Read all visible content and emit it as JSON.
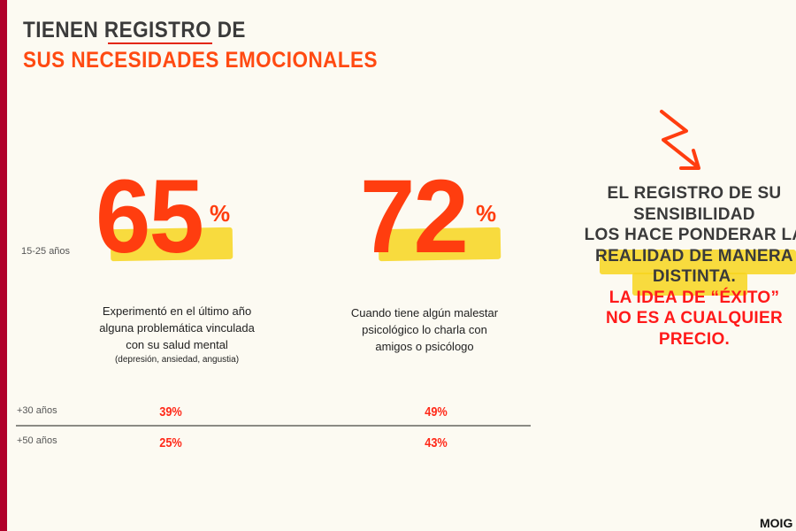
{
  "title": {
    "line1": "TIENEN REGISTRO DE",
    "line2": "SUS NECESIDADES EMOCIONALES"
  },
  "age_groups": {
    "main": "15-25 años",
    "row1": "+30 años",
    "row2": "+50 años"
  },
  "stats": [
    {
      "value": "65",
      "unit": "%",
      "description": [
        "Experimentó en el último año",
        "alguna problemática vinculada",
        "con su salud mental"
      ],
      "note": "(depresión, ansiedad, angustia)",
      "plus30": "39%",
      "plus50": "25%"
    },
    {
      "value": "72",
      "unit": "%",
      "description": [
        "Cuando tiene algún malestar",
        "psicológico lo charla con",
        "amigos o psicólogo"
      ],
      "plus30": "49%",
      "plus50": "43%"
    }
  ],
  "callout": {
    "dark_lines": [
      "EL REGISTRO DE SU",
      "SENSIBILIDAD",
      "LOS HACE PONDERAR LA",
      "REALIDAD DE MANERA",
      "DISTINTA."
    ],
    "red_lines": [
      "LA IDEA DE “ÉXITO”",
      "NO ES A CUALQUIER",
      "PRECIO."
    ]
  },
  "brand": "MOIG",
  "colors": {
    "accent": "#ff3d0f",
    "highlight": "#f7d51e",
    "sidebar": "#b0002a",
    "text": "#3a3a3a"
  },
  "icons": {
    "arrow": "zigzag-arrow-icon"
  }
}
